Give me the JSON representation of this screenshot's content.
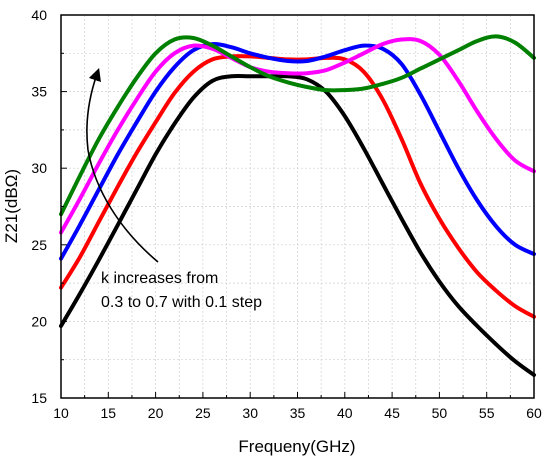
{
  "chart_data": {
    "type": "line",
    "xlabel": "Frequeny(GHz)",
    "ylabel": "Z21(dBΩ)",
    "xlim": [
      10,
      60
    ],
    "ylim": [
      15,
      40
    ],
    "xticks": [
      10,
      15,
      20,
      25,
      30,
      35,
      40,
      45,
      50,
      55,
      60
    ],
    "yticks": [
      15,
      20,
      25,
      30,
      35,
      40
    ],
    "grid": true,
    "annotation": {
      "lines": [
        "k increases from",
        "0.3 to 0.7 with 0.1 step"
      ]
    },
    "series": [
      {
        "color": "#000000",
        "x": [
          10,
          12,
          14,
          16,
          18,
          20,
          22,
          24,
          26,
          28,
          30,
          32,
          34,
          36,
          38,
          40,
          42,
          44,
          46,
          48,
          50,
          52,
          54,
          56,
          58,
          60
        ],
        "y": [
          19.7,
          21.8,
          24.0,
          26.3,
          28.6,
          30.9,
          32.9,
          34.6,
          35.7,
          36.0,
          36.0,
          36.0,
          36.0,
          35.8,
          35.0,
          33.4,
          31.3,
          29.0,
          26.7,
          24.5,
          22.6,
          21.0,
          19.7,
          18.5,
          17.4,
          16.5
        ]
      },
      {
        "color": "#ff0000",
        "x": [
          10,
          12,
          14,
          16,
          18,
          20,
          22,
          24,
          26,
          28,
          30,
          32,
          34,
          36,
          38,
          40,
          42,
          44,
          46,
          48,
          50,
          52,
          54,
          56,
          58,
          60
        ],
        "y": [
          22.2,
          24.2,
          26.5,
          28.8,
          31.0,
          33.0,
          34.9,
          36.3,
          37.1,
          37.3,
          37.3,
          37.2,
          37.1,
          37.1,
          37.2,
          37.1,
          36.3,
          34.5,
          31.9,
          29.0,
          26.7,
          24.8,
          23.2,
          22.0,
          21.0,
          20.3
        ]
      },
      {
        "color": "#0000ff",
        "x": [
          10,
          12,
          14,
          16,
          18,
          20,
          22,
          24,
          26,
          28,
          30,
          32,
          34,
          36,
          38,
          40,
          42,
          44,
          46,
          48,
          50,
          52,
          54,
          56,
          58,
          60
        ],
        "y": [
          24.1,
          26.3,
          28.6,
          30.9,
          33.0,
          35.0,
          36.6,
          37.7,
          38.1,
          37.9,
          37.5,
          37.2,
          37.0,
          37.0,
          37.3,
          37.7,
          38.0,
          37.8,
          36.8,
          34.8,
          32.4,
          30.0,
          27.9,
          26.2,
          25.0,
          24.4
        ]
      },
      {
        "color": "#ff00ff",
        "x": [
          10,
          12,
          14,
          16,
          18,
          20,
          22,
          24,
          26,
          28,
          30,
          32,
          34,
          36,
          38,
          40,
          42,
          44,
          46,
          48,
          50,
          52,
          54,
          56,
          58,
          60
        ],
        "y": [
          25.8,
          28.0,
          30.3,
          32.5,
          34.5,
          36.3,
          37.5,
          38.0,
          37.8,
          37.2,
          36.6,
          36.3,
          36.2,
          36.2,
          36.4,
          36.9,
          37.5,
          38.1,
          38.4,
          38.3,
          37.4,
          35.7,
          33.7,
          31.9,
          30.5,
          29.8
        ]
      },
      {
        "color": "#008000",
        "x": [
          10,
          12,
          14,
          16,
          18,
          20,
          22,
          24,
          26,
          28,
          30,
          32,
          34,
          36,
          38,
          40,
          42,
          44,
          46,
          48,
          50,
          52,
          54,
          56,
          58,
          60
        ],
        "y": [
          27.0,
          29.5,
          31.9,
          34.0,
          35.9,
          37.5,
          38.4,
          38.5,
          38.0,
          37.3,
          36.6,
          36.0,
          35.6,
          35.3,
          35.1,
          35.1,
          35.2,
          35.5,
          35.9,
          36.5,
          37.1,
          37.7,
          38.3,
          38.6,
          38.2,
          37.2
        ]
      }
    ]
  }
}
